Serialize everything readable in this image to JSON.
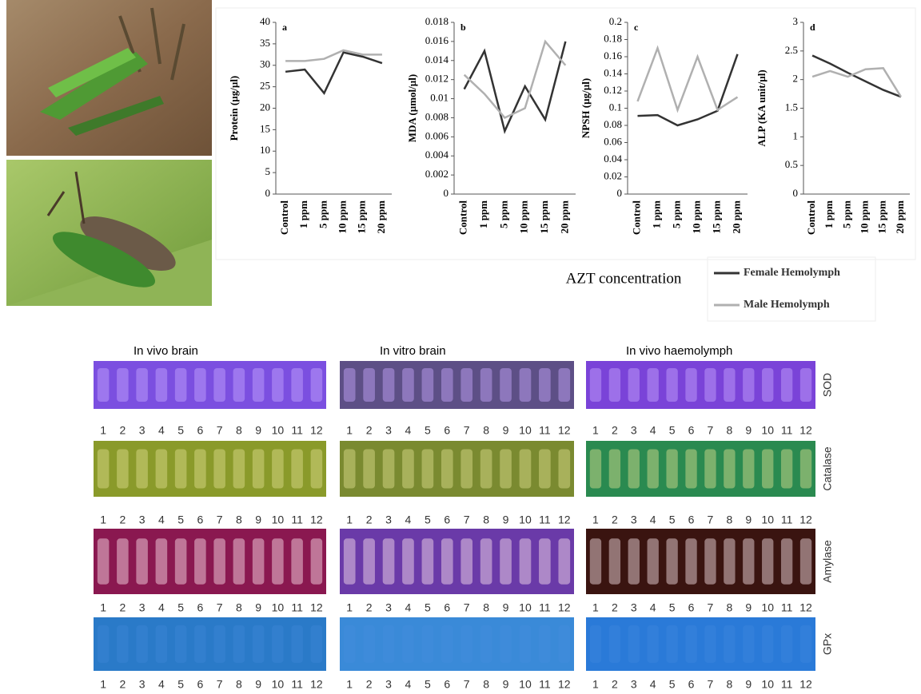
{
  "chart_data": [
    {
      "type": "line",
      "label": "a",
      "y_label": "Protein (µg/µl)",
      "categories": [
        "Control",
        "1 ppm",
        "5 ppm",
        "10 ppm",
        "15 ppm",
        "20 ppm"
      ],
      "series": [
        {
          "name": "Female Hemolymph",
          "color": "#333333",
          "values": [
            28.5,
            29,
            23.5,
            33,
            32,
            30.5
          ]
        },
        {
          "name": "Male Hemolymph",
          "color": "#b0b0b0",
          "values": [
            31,
            31,
            31.5,
            33.5,
            32.5,
            32.5
          ]
        }
      ],
      "ylim": [
        0,
        40
      ],
      "yticks": [
        0,
        5,
        10,
        15,
        20,
        25,
        30,
        35,
        40
      ]
    },
    {
      "type": "line",
      "label": "b",
      "y_label": "MDA (µmol/µl)",
      "categories": [
        "Control",
        "1 ppm",
        "5 ppm",
        "10 ppm",
        "15 ppm",
        "20 ppm"
      ],
      "series": [
        {
          "color": "#333333",
          "values": [
            0.011,
            0.015,
            0.0066,
            0.0113,
            0.0078,
            0.016
          ]
        },
        {
          "color": "#b0b0b0",
          "values": [
            0.0125,
            0.0105,
            0.008,
            0.009,
            0.016,
            0.0135
          ]
        }
      ],
      "ylim": [
        0,
        0.018
      ],
      "yticks": [
        0,
        0.002,
        0.004,
        0.006,
        0.008,
        0.01,
        0.012,
        0.014,
        0.016,
        0.018
      ]
    },
    {
      "type": "line",
      "label": "c",
      "y_label": "NPSH (µg/µl)",
      "categories": [
        "Control",
        "1 ppm",
        "5 ppm",
        "10 ppm",
        "15 ppm",
        "20 ppm"
      ],
      "series": [
        {
          "color": "#333333",
          "values": [
            0.091,
            0.092,
            0.08,
            0.087,
            0.097,
            0.163
          ]
        },
        {
          "color": "#b0b0b0",
          "values": [
            0.108,
            0.17,
            0.098,
            0.16,
            0.098,
            0.113
          ]
        }
      ],
      "ylim": [
        0,
        0.2
      ],
      "yticks": [
        0,
        0.02,
        0.04,
        0.06,
        0.08,
        0.1,
        0.12,
        0.14,
        0.16,
        0.18,
        0.2
      ]
    },
    {
      "type": "line",
      "label": "d",
      "y_label": "ALP (KA unit/µl)",
      "categories": [
        "Control",
        "1 ppm",
        "5 ppm",
        "10 ppm",
        "15 ppm",
        "20 ppm"
      ],
      "series": [
        {
          "color": "#333333",
          "values": [
            2.42,
            2.28,
            2.12,
            1.97,
            1.82,
            1.7
          ]
        },
        {
          "color": "#b0b0b0",
          "values": [
            2.05,
            2.15,
            2.05,
            2.18,
            2.2,
            1.7
          ]
        }
      ],
      "ylim": [
        0,
        3
      ],
      "yticks": [
        0,
        0.5,
        1,
        1.5,
        2,
        2.5,
        3
      ]
    }
  ],
  "x_label": "AZT concentration",
  "gels": {
    "columns": [
      "In vivo brain",
      "In vitro brain",
      "In vivo haemolymph"
    ],
    "rows": [
      "SOD",
      "Catalase",
      "Amylase",
      "GPx"
    ],
    "lanes": [
      "1",
      "2",
      "3",
      "4",
      "5",
      "6",
      "7",
      "8",
      "9",
      "10",
      "11",
      "12"
    ]
  }
}
